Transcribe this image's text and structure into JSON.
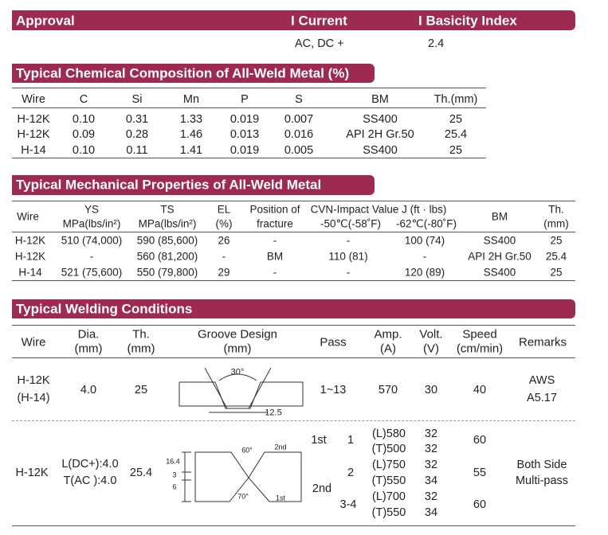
{
  "approval": {
    "headers": [
      "Approval",
      "I Current",
      "I Basicity Index"
    ],
    "values": [
      "AC, DC +",
      "2.4"
    ]
  },
  "chemical": {
    "title": "Typical Chemical Composition of All-Weld Metal (%)",
    "headers": [
      "Wire",
      "C",
      "Si",
      "Mn",
      "P",
      "S",
      "BM",
      "Th.(mm)"
    ],
    "rows": [
      [
        "H-12K",
        "0.10",
        "0.31",
        "1.33",
        "0.019",
        "0.007",
        "SS400",
        "25"
      ],
      [
        "H-12K",
        "0.09",
        "0.28",
        "1.46",
        "0.013",
        "0.016",
        "API 2H Gr.50",
        "25.4"
      ],
      [
        "H-14",
        "0.10",
        "0.11",
        "1.41",
        "0.019",
        "0.005",
        "SS400",
        "25"
      ]
    ]
  },
  "mechanical": {
    "title": "Typical Mechanical Properties of All-Weld Metal",
    "headers": [
      "Wire",
      "YS",
      "MPa(lbs/in²)",
      "TS",
      "MPa(lbs/in²)",
      "EL",
      "(%)",
      "Position of",
      "fracture",
      "CVN-Impact Value J (ft · lbs)",
      "-50℃(-58˚F)",
      "-62℃(-80˚F)",
      "BM",
      "Th.",
      "(mm)"
    ],
    "rows": [
      [
        "H-12K",
        "510 (74,000)",
        "590 (85,600)",
        "26",
        "-",
        "-",
        "100 (74)",
        "SS400",
        "25"
      ],
      [
        "H-12K",
        "-",
        "560 (81,200)",
        "-",
        "BM",
        "110 (81)",
        "-",
        "API 2H Gr.50",
        "25.4"
      ],
      [
        "H-14",
        "521 (75,600)",
        "550 (79,800)",
        "29",
        "-",
        "-",
        "120 (89)",
        "SS400",
        "25"
      ]
    ]
  },
  "welding": {
    "title": "Typical Welding Conditions",
    "headers": [
      "Wire",
      "Dia.",
      "(mm)",
      "Th.",
      "(mm)",
      "Groove Design",
      "(mm)",
      "Pass",
      "Amp.",
      "(A)",
      "Volt.",
      "(V)",
      "Speed",
      "(cm/min)",
      "Remarks"
    ],
    "row1": {
      "wire": [
        "H-12K",
        "(H-14)"
      ],
      "dia": "4.0",
      "th": "25",
      "groove": [
        "30°",
        "12.5"
      ],
      "pass": "1~13",
      "amp": "570",
      "volt": "30",
      "speed": "40",
      "remarks": [
        "AWS",
        "A5.17"
      ]
    },
    "row2": {
      "wire": "H-12K",
      "dia": [
        "L(DC+):4.0",
        "T(AC ):4.0"
      ],
      "th": "25.4",
      "groove": [
        "60°",
        "2nd",
        "70°",
        "1st",
        "16.4",
        "3",
        "6"
      ],
      "pass": [
        "1st",
        "1",
        "2",
        "2nd",
        "3-4"
      ],
      "amp": [
        "(L)580",
        "(T)500",
        "(L)750",
        "(T)550",
        "(L)700",
        "(T)550"
      ],
      "volt": [
        "32",
        "32",
        "32",
        "34",
        "32",
        "34"
      ],
      "speed": [
        "60",
        "55",
        "60"
      ],
      "remarks": [
        "Both Side",
        "Multi-pass"
      ]
    }
  }
}
